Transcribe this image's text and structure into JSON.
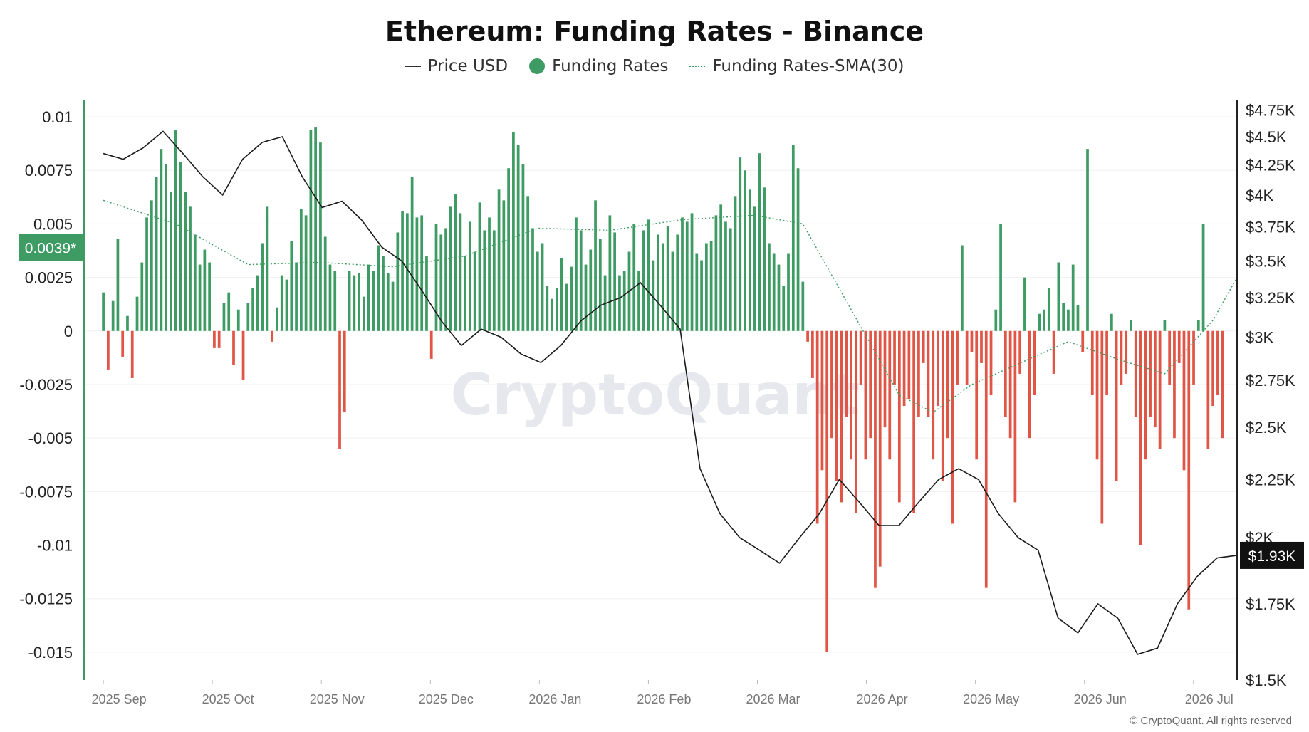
{
  "chart_data": {
    "type": "bar",
    "title": "Ethereum: Funding Rates - Binance",
    "legend": [
      {
        "label": "Price USD",
        "style": "line",
        "color": "#333333"
      },
      {
        "label": "Funding Rates",
        "style": "dot",
        "color": "#3d9b63"
      },
      {
        "label": "Funding Rates-SMA(30)",
        "style": "dotted-line",
        "color": "#3d9b63"
      }
    ],
    "legend_position": "top-center",
    "colors": {
      "positive": "#3d9b63",
      "negative": "#e05545",
      "price": "#1a1a1a",
      "sma": "#3d9b63",
      "axis": "#3d9b63"
    },
    "x_ticks": [
      "2025 Sep",
      "2025 Oct",
      "2025 Nov",
      "2025 Dec",
      "2026 Jan",
      "2026 Feb",
      "2026 Mar",
      "2026 Apr",
      "2026 May",
      "2026 Jun",
      "2026 Jul"
    ],
    "x_range_days": [
      -4,
      235
    ],
    "y_left": {
      "ticks": [
        0.01,
        0.0075,
        0.005,
        0.0025,
        0,
        -0.0025,
        -0.005,
        -0.0075,
        -0.01,
        -0.0125,
        -0.015
      ],
      "tick_labels": [
        "0.01",
        "0.0075",
        "0.005",
        "0.0025",
        "0",
        "-0.0025",
        "-0.005",
        "-0.0075",
        "-0.01",
        "-0.0125",
        "-0.015"
      ],
      "range": [
        -0.0163,
        0.0108
      ]
    },
    "y_right": {
      "ticks": [
        4750,
        4500,
        4250,
        4000,
        3750,
        3500,
        3250,
        3000,
        2750,
        2500,
        2250,
        2000,
        1750,
        1500
      ],
      "tick_labels": [
        "$4.75K",
        "$4.5K",
        "$4.25K",
        "$4K",
        "$3.75K",
        "$3.5K",
        "$3.25K",
        "$3K",
        "$2.75K",
        "$2.5K",
        "$2.25K",
        "$2K",
        "$1.75K",
        "$1.5K"
      ],
      "scale": "log",
      "range": [
        1500,
        4850
      ]
    },
    "current_funding_label": "0.0039*",
    "current_price_label": "$1.93K",
    "funding_rates": [
      [
        0,
        0.0018
      ],
      [
        1,
        -0.0018
      ],
      [
        2,
        0.0014
      ],
      [
        3,
        0.0043
      ],
      [
        4,
        -0.0012
      ],
      [
        5,
        0.0007
      ],
      [
        6,
        -0.0022
      ],
      [
        7,
        0.0016
      ],
      [
        8,
        0.0032
      ],
      [
        9,
        0.0053
      ],
      [
        10,
        0.0061
      ],
      [
        11,
        0.0072
      ],
      [
        12,
        0.0085
      ],
      [
        13,
        0.0078
      ],
      [
        14,
        0.0065
      ],
      [
        15,
        0.0094
      ],
      [
        16,
        0.0079
      ],
      [
        17,
        0.0065
      ],
      [
        18,
        0.0058
      ],
      [
        19,
        0.0045
      ],
      [
        20,
        0.0031
      ],
      [
        21,
        0.0038
      ],
      [
        22,
        0.0032
      ],
      [
        23,
        -0.0008
      ],
      [
        24,
        -0.0008
      ],
      [
        25,
        0.0013
      ],
      [
        26,
        0.0018
      ],
      [
        27,
        -0.0016
      ],
      [
        28,
        0.001
      ],
      [
        29,
        -0.0023
      ],
      [
        30,
        0.0013
      ],
      [
        31,
        0.002
      ],
      [
        32,
        0.0026
      ],
      [
        33,
        0.0041
      ],
      [
        34,
        0.0058
      ],
      [
        35,
        -0.0005
      ],
      [
        36,
        0.0011
      ],
      [
        37,
        0.0026
      ],
      [
        38,
        0.0024
      ],
      [
        39,
        0.0042
      ],
      [
        40,
        0.0032
      ],
      [
        41,
        0.0057
      ],
      [
        42,
        0.0054
      ],
      [
        43,
        0.0094
      ],
      [
        44,
        0.0095
      ],
      [
        45,
        0.0088
      ],
      [
        46,
        0.0044
      ],
      [
        47,
        0.0031
      ],
      [
        48,
        0.0028
      ],
      [
        49,
        -0.0055
      ],
      [
        50,
        -0.0038
      ],
      [
        51,
        0.0028
      ],
      [
        52,
        0.0026
      ],
      [
        53,
        0.0027
      ],
      [
        54,
        0.0016
      ],
      [
        55,
        0.0031
      ],
      [
        56,
        0.0028
      ],
      [
        57,
        0.004
      ],
      [
        58,
        0.0035
      ],
      [
        59,
        0.0027
      ],
      [
        60,
        0.0023
      ],
      [
        61,
        0.0046
      ],
      [
        62,
        0.0056
      ],
      [
        63,
        0.0055
      ],
      [
        64,
        0.0072
      ],
      [
        65,
        0.0053
      ],
      [
        66,
        0.0054
      ],
      [
        67,
        0.0035
      ],
      [
        68,
        -0.0013
      ],
      [
        69,
        0.005
      ],
      [
        70,
        0.0045
      ],
      [
        71,
        0.0048
      ],
      [
        72,
        0.0058
      ],
      [
        73,
        0.0064
      ],
      [
        74,
        0.0055
      ],
      [
        75,
        0.0035
      ],
      [
        76,
        0.0051
      ],
      [
        77,
        0.0037
      ],
      [
        78,
        0.006
      ],
      [
        79,
        0.0047
      ],
      [
        80,
        0.0053
      ],
      [
        81,
        0.0047
      ],
      [
        82,
        0.0066
      ],
      [
        83,
        0.0061
      ],
      [
        84,
        0.0076
      ],
      [
        85,
        0.0093
      ],
      [
        86,
        0.0087
      ],
      [
        87,
        0.0078
      ],
      [
        88,
        0.0063
      ],
      [
        89,
        0.0048
      ],
      [
        90,
        0.0037
      ],
      [
        91,
        0.0041
      ],
      [
        92,
        0.0021
      ],
      [
        93,
        0.0015
      ],
      [
        94,
        0.002
      ],
      [
        95,
        0.0034
      ],
      [
        96,
        0.0022
      ],
      [
        97,
        0.003
      ],
      [
        98,
        0.0053
      ],
      [
        99,
        0.0047
      ],
      [
        100,
        0.0031
      ],
      [
        101,
        0.0038
      ],
      [
        102,
        0.0061
      ],
      [
        103,
        0.0043
      ],
      [
        104,
        0.0026
      ],
      [
        105,
        0.0054
      ],
      [
        106,
        0.0046
      ],
      [
        107,
        0.0026
      ],
      [
        108,
        0.0028
      ],
      [
        109,
        0.0037
      ],
      [
        110,
        0.005
      ],
      [
        111,
        0.0028
      ],
      [
        112,
        0.0047
      ],
      [
        113,
        0.0052
      ],
      [
        114,
        0.0033
      ],
      [
        115,
        0.0045
      ],
      [
        116,
        0.0041
      ],
      [
        117,
        0.0049
      ],
      [
        118,
        0.0037
      ],
      [
        119,
        0.0045
      ],
      [
        120,
        0.0053
      ],
      [
        121,
        0.0051
      ],
      [
        122,
        0.0055
      ],
      [
        123,
        0.0036
      ],
      [
        124,
        0.0033
      ],
      [
        125,
        0.0041
      ],
      [
        126,
        0.0042
      ],
      [
        127,
        0.0054
      ],
      [
        128,
        0.0059
      ],
      [
        129,
        0.0051
      ],
      [
        130,
        0.0048
      ],
      [
        131,
        0.0063
      ],
      [
        132,
        0.0081
      ],
      [
        133,
        0.0075
      ],
      [
        134,
        0.0066
      ],
      [
        135,
        0.0058
      ],
      [
        136,
        0.0083
      ],
      [
        137,
        0.0067
      ],
      [
        138,
        0.0041
      ],
      [
        139,
        0.0036
      ],
      [
        140,
        0.0031
      ],
      [
        141,
        0.0021
      ],
      [
        142,
        0.0036
      ],
      [
        143,
        0.0087
      ],
      [
        144,
        0.0076
      ],
      [
        145,
        0.0023
      ],
      [
        146,
        -0.0005
      ],
      [
        147,
        -0.0022
      ],
      [
        148,
        -0.009
      ],
      [
        149,
        -0.0065
      ],
      [
        150,
        -0.015
      ],
      [
        151,
        -0.005
      ],
      [
        152,
        -0.007
      ],
      [
        153,
        -0.008
      ],
      [
        154,
        -0.004
      ],
      [
        155,
        -0.006
      ],
      [
        156,
        -0.0085
      ],
      [
        157,
        -0.0025
      ],
      [
        158,
        -0.006
      ],
      [
        159,
        -0.005
      ],
      [
        160,
        -0.012
      ],
      [
        161,
        -0.011
      ],
      [
        162,
        -0.0045
      ],
      [
        163,
        -0.006
      ],
      [
        164,
        -0.0025
      ],
      [
        165,
        -0.008
      ],
      [
        166,
        -0.0035
      ],
      [
        167,
        -0.0032
      ],
      [
        168,
        -0.0085
      ],
      [
        169,
        -0.004
      ],
      [
        170,
        -0.0015
      ],
      [
        171,
        -0.004
      ],
      [
        172,
        -0.006
      ],
      [
        173,
        -0.0035
      ],
      [
        174,
        -0.007
      ],
      [
        175,
        -0.005
      ],
      [
        176,
        -0.009
      ],
      [
        177,
        -0.0025
      ],
      [
        178,
        0.004
      ],
      [
        179,
        -0.0025
      ],
      [
        180,
        -0.001
      ],
      [
        181,
        -0.006
      ],
      [
        182,
        -0.0015
      ],
      [
        183,
        -0.012
      ],
      [
        184,
        -0.003
      ],
      [
        185,
        0.001
      ],
      [
        186,
        0.005
      ],
      [
        187,
        -0.004
      ],
      [
        188,
        -0.005
      ],
      [
        189,
        -0.008
      ],
      [
        190,
        -0.002
      ],
      [
        191,
        0.0025
      ],
      [
        192,
        -0.005
      ],
      [
        193,
        -0.003
      ],
      [
        194,
        0.0008
      ],
      [
        195,
        0.001
      ],
      [
        196,
        0.002
      ],
      [
        197,
        -0.002
      ],
      [
        198,
        0.0032
      ],
      [
        199,
        0.0013
      ],
      [
        200,
        0.001
      ],
      [
        201,
        0.0031
      ],
      [
        202,
        0.0012
      ],
      [
        203,
        -0.001
      ],
      [
        204,
        0.0085
      ],
      [
        205,
        -0.003
      ],
      [
        206,
        -0.006
      ],
      [
        207,
        -0.009
      ],
      [
        208,
        -0.003
      ],
      [
        209,
        0.0008
      ],
      [
        210,
        -0.007
      ],
      [
        211,
        -0.0025
      ],
      [
        212,
        -0.002
      ],
      [
        213,
        0.0005
      ],
      [
        214,
        -0.004
      ],
      [
        215,
        -0.01
      ],
      [
        216,
        -0.006
      ],
      [
        217,
        -0.004
      ],
      [
        218,
        -0.0045
      ],
      [
        219,
        -0.0055
      ],
      [
        220,
        0.0005
      ],
      [
        221,
        -0.0025
      ],
      [
        222,
        -0.005
      ],
      [
        223,
        -0.0015
      ],
      [
        224,
        -0.0065
      ],
      [
        225,
        -0.013
      ],
      [
        226,
        -0.0025
      ],
      [
        227,
        0.0005
      ],
      [
        228,
        0.005
      ],
      [
        229,
        -0.0055
      ],
      [
        230,
        -0.0035
      ],
      [
        231,
        -0.003
      ],
      [
        232,
        -0.005
      ]
    ],
    "funding_sma30": [
      [
        0,
        0.0061
      ],
      [
        15,
        0.005
      ],
      [
        30,
        0.0031
      ],
      [
        45,
        0.0032
      ],
      [
        60,
        0.003
      ],
      [
        75,
        0.0035
      ],
      [
        90,
        0.0048
      ],
      [
        105,
        0.0047
      ],
      [
        120,
        0.0052
      ],
      [
        135,
        0.0054
      ],
      [
        145,
        0.005
      ],
      [
        155,
        0.001
      ],
      [
        165,
        -0.003
      ],
      [
        172,
        -0.0038
      ],
      [
        180,
        -0.0025
      ],
      [
        190,
        -0.0015
      ],
      [
        200,
        -0.0005
      ],
      [
        210,
        -0.0013
      ],
      [
        220,
        -0.002
      ],
      [
        230,
        0.0005
      ],
      [
        240,
        0.0025
      ],
      [
        248,
        0.0043
      ],
      [
        255,
        0.0025
      ],
      [
        265,
        0.0008
      ],
      [
        275,
        0.003
      ]
    ],
    "price_usd": [
      [
        0,
        4350
      ],
      [
        5,
        4300
      ],
      [
        10,
        4400
      ],
      [
        15,
        4550
      ],
      [
        20,
        4350
      ],
      [
        25,
        4150
      ],
      [
        30,
        4000
      ],
      [
        35,
        4300
      ],
      [
        40,
        4450
      ],
      [
        45,
        4500
      ],
      [
        50,
        4150
      ],
      [
        55,
        3900
      ],
      [
        60,
        3950
      ],
      [
        65,
        3800
      ],
      [
        70,
        3600
      ],
      [
        75,
        3500
      ],
      [
        80,
        3300
      ],
      [
        85,
        3100
      ],
      [
        90,
        2950
      ],
      [
        95,
        3050
      ],
      [
        100,
        3000
      ],
      [
        105,
        2900
      ],
      [
        110,
        2850
      ],
      [
        115,
        2950
      ],
      [
        120,
        3100
      ],
      [
        125,
        3200
      ],
      [
        130,
        3250
      ],
      [
        135,
        3350
      ],
      [
        140,
        3200
      ],
      [
        145,
        3050
      ],
      [
        150,
        2300
      ],
      [
        155,
        2100
      ],
      [
        160,
        2000
      ],
      [
        165,
        1950
      ],
      [
        170,
        1900
      ],
      [
        175,
        2000
      ],
      [
        180,
        2100
      ],
      [
        185,
        2250
      ],
      [
        190,
        2150
      ],
      [
        195,
        2050
      ],
      [
        200,
        2050
      ],
      [
        205,
        2150
      ],
      [
        210,
        2250
      ],
      [
        215,
        2300
      ],
      [
        220,
        2250
      ],
      [
        225,
        2100
      ],
      [
        230,
        2000
      ],
      [
        235,
        1950
      ],
      [
        240,
        1700
      ],
      [
        245,
        1650
      ],
      [
        250,
        1750
      ],
      [
        255,
        1700
      ],
      [
        260,
        1580
      ],
      [
        265,
        1600
      ],
      [
        270,
        1750
      ],
      [
        275,
        1850
      ],
      [
        280,
        1920
      ],
      [
        285,
        1930
      ]
    ],
    "watermark": "CryptoQuant"
  },
  "footer": {
    "copyright": "© CryptoQuant. All rights reserved"
  }
}
